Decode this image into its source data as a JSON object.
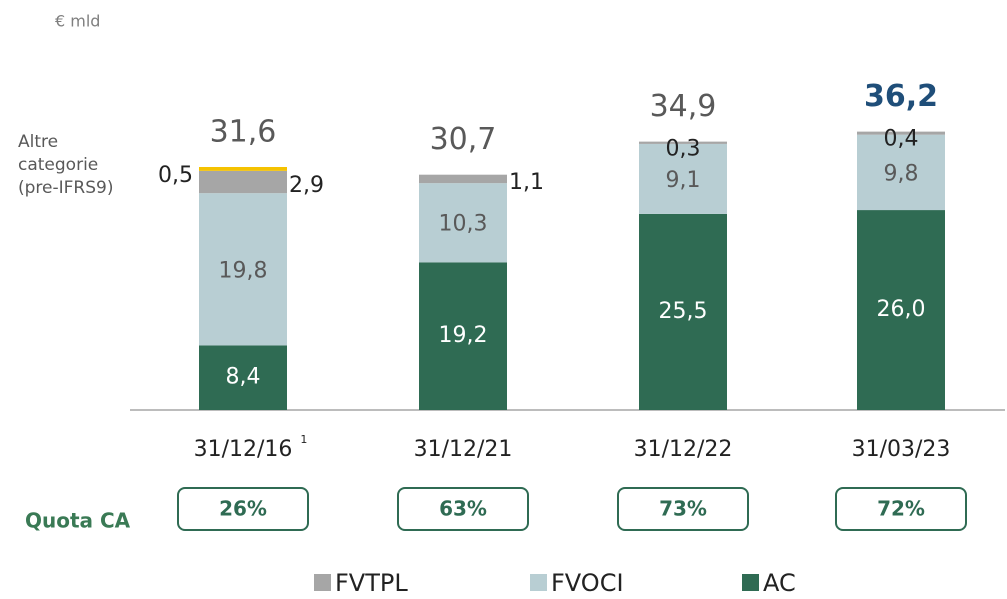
{
  "chart_data": {
    "type": "stacked_bar",
    "unit": "€ mld",
    "categories": [
      "31/12/16",
      "31/12/21",
      "31/12/22",
      "31/03/23"
    ],
    "category_notes": [
      "1",
      null,
      null,
      null
    ],
    "series": [
      {
        "name": "FVTPL",
        "color": "#a6a6a6",
        "values": [
          2.9,
          1.1,
          0.3,
          0.4
        ],
        "value_labels": [
          "2,9",
          "1,1",
          "0,3",
          "0,4"
        ]
      },
      {
        "name": "FVOCI",
        "color": "#b8ced3",
        "values": [
          19.8,
          10.3,
          9.1,
          9.8
        ],
        "value_labels": [
          "19,8",
          "10,3",
          "9,1",
          "9,8"
        ]
      },
      {
        "name": "AC",
        "color": "#2f6b53",
        "values": [
          8.4,
          19.2,
          25.5,
          26.0
        ],
        "value_labels": [
          "8,4",
          "19,2",
          "25,5",
          "26,0"
        ]
      }
    ],
    "other": {
      "lines": [
        "Altre",
        "categorie",
        "(pre-IFRS9)"
      ],
      "color": "#f5c200",
      "values": [
        0.5,
        null,
        null,
        null
      ],
      "value_labels": [
        "0,5",
        null,
        null,
        null
      ]
    },
    "totals": {
      "values": [
        31.6,
        30.7,
        34.9,
        36.2
      ],
      "value_labels": [
        "31,6",
        "30,7",
        "34,9",
        "36,2"
      ],
      "color": "#595959",
      "emphasis": [
        false,
        false,
        false,
        true
      ],
      "emphasis_color": "#1f4e79"
    },
    "quota": {
      "label": "Quota CA",
      "color": "#2f6b53",
      "values": [
        26,
        63,
        73,
        72
      ],
      "value_labels": [
        "26%",
        "63%",
        "73%",
        "72%"
      ]
    }
  }
}
